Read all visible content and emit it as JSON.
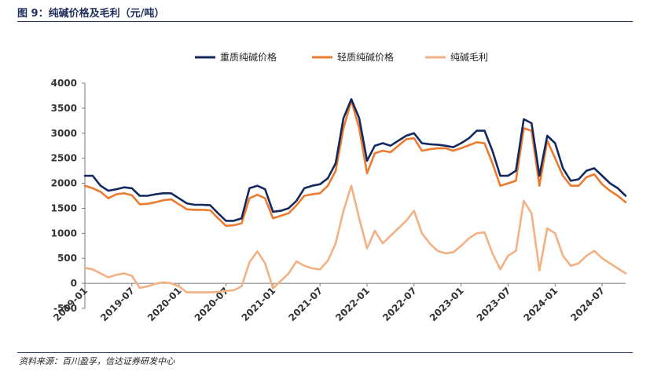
{
  "title": "图 9：纯碱价格及毛利（元/吨）",
  "source": "资料来源：百川盈孚，信达证券研发中心",
  "chart_data": {
    "type": "line",
    "title": "",
    "xlabel": "",
    "ylabel": "",
    "ylim": [
      -500,
      4000
    ],
    "yticks": [
      -500,
      0,
      500,
      1000,
      1500,
      2000,
      2500,
      3000,
      3500,
      4000
    ],
    "x_range": [
      "2019-01",
      "2024-10"
    ],
    "xtick_labels": [
      "2019-01",
      "2019-07",
      "2020-01",
      "2020-07",
      "2021-01",
      "2021-07",
      "2022-01",
      "2022-07",
      "2023-01",
      "2023-07",
      "2024-01",
      "2024-07"
    ],
    "grid": false,
    "legend": "top",
    "series": [
      {
        "name": "重质纯碱价格",
        "color": "#12285f",
        "points": [
          [
            "2019-01",
            2150
          ],
          [
            "2019-02",
            2150
          ],
          [
            "2019-03",
            1950
          ],
          [
            "2019-04",
            1850
          ],
          [
            "2019-05",
            1880
          ],
          [
            "2019-06",
            1920
          ],
          [
            "2019-07",
            1900
          ],
          [
            "2019-08",
            1750
          ],
          [
            "2019-09",
            1750
          ],
          [
            "2019-10",
            1780
          ],
          [
            "2019-11",
            1800
          ],
          [
            "2019-12",
            1800
          ],
          [
            "2020-01",
            1700
          ],
          [
            "2020-02",
            1600
          ],
          [
            "2020-03",
            1570
          ],
          [
            "2020-04",
            1570
          ],
          [
            "2020-05",
            1560
          ],
          [
            "2020-06",
            1400
          ],
          [
            "2020-07",
            1250
          ],
          [
            "2020-08",
            1250
          ],
          [
            "2020-09",
            1300
          ],
          [
            "2020-10",
            1900
          ],
          [
            "2020-11",
            1950
          ],
          [
            "2020-12",
            1880
          ],
          [
            "2021-01",
            1430
          ],
          [
            "2021-02",
            1450
          ],
          [
            "2021-03",
            1500
          ],
          [
            "2021-04",
            1650
          ],
          [
            "2021-05",
            1900
          ],
          [
            "2021-06",
            1950
          ],
          [
            "2021-07",
            1980
          ],
          [
            "2021-08",
            2100
          ],
          [
            "2021-09",
            2400
          ],
          [
            "2021-10",
            3300
          ],
          [
            "2021-11",
            3680
          ],
          [
            "2021-12",
            3300
          ],
          [
            "2022-01",
            2450
          ],
          [
            "2022-02",
            2750
          ],
          [
            "2022-03",
            2800
          ],
          [
            "2022-04",
            2750
          ],
          [
            "2022-05",
            2850
          ],
          [
            "2022-06",
            2950
          ],
          [
            "2022-07",
            3000
          ],
          [
            "2022-08",
            2800
          ],
          [
            "2022-09",
            2780
          ],
          [
            "2022-10",
            2770
          ],
          [
            "2022-11",
            2750
          ],
          [
            "2022-12",
            2720
          ],
          [
            "2023-01",
            2800
          ],
          [
            "2023-02",
            2900
          ],
          [
            "2023-03",
            3050
          ],
          [
            "2023-04",
            3050
          ],
          [
            "2023-05",
            2650
          ],
          [
            "2023-06",
            2150
          ],
          [
            "2023-07",
            2150
          ],
          [
            "2023-08",
            2250
          ],
          [
            "2023-09",
            3280
          ],
          [
            "2023-10",
            3200
          ],
          [
            "2023-11",
            2150
          ],
          [
            "2023-12",
            2950
          ],
          [
            "2024-01",
            2800
          ],
          [
            "2024-02",
            2300
          ],
          [
            "2024-03",
            2050
          ],
          [
            "2024-04",
            2080
          ],
          [
            "2024-05",
            2250
          ],
          [
            "2024-06",
            2300
          ],
          [
            "2024-07",
            2150
          ],
          [
            "2024-08",
            2000
          ],
          [
            "2024-09",
            1900
          ],
          [
            "2024-10",
            1750
          ]
        ]
      },
      {
        "name": "轻质纯碱价格",
        "color": "#ec7b2f",
        "points": [
          [
            "2019-01",
            1950
          ],
          [
            "2019-02",
            1900
          ],
          [
            "2019-03",
            1830
          ],
          [
            "2019-04",
            1700
          ],
          [
            "2019-05",
            1780
          ],
          [
            "2019-06",
            1800
          ],
          [
            "2019-07",
            1760
          ],
          [
            "2019-08",
            1580
          ],
          [
            "2019-09",
            1590
          ],
          [
            "2019-10",
            1620
          ],
          [
            "2019-11",
            1660
          ],
          [
            "2019-12",
            1680
          ],
          [
            "2020-01",
            1580
          ],
          [
            "2020-02",
            1480
          ],
          [
            "2020-03",
            1470
          ],
          [
            "2020-04",
            1470
          ],
          [
            "2020-05",
            1460
          ],
          [
            "2020-06",
            1300
          ],
          [
            "2020-07",
            1150
          ],
          [
            "2020-08",
            1160
          ],
          [
            "2020-09",
            1200
          ],
          [
            "2020-10",
            1700
          ],
          [
            "2020-11",
            1770
          ],
          [
            "2020-12",
            1700
          ],
          [
            "2021-01",
            1300
          ],
          [
            "2021-02",
            1350
          ],
          [
            "2021-03",
            1400
          ],
          [
            "2021-04",
            1560
          ],
          [
            "2021-05",
            1750
          ],
          [
            "2021-06",
            1780
          ],
          [
            "2021-07",
            1800
          ],
          [
            "2021-08",
            1950
          ],
          [
            "2021-09",
            2250
          ],
          [
            "2021-10",
            3100
          ],
          [
            "2021-11",
            3650
          ],
          [
            "2021-12",
            3100
          ],
          [
            "2022-01",
            2200
          ],
          [
            "2022-02",
            2600
          ],
          [
            "2022-03",
            2650
          ],
          [
            "2022-04",
            2620
          ],
          [
            "2022-05",
            2750
          ],
          [
            "2022-06",
            2880
          ],
          [
            "2022-07",
            2900
          ],
          [
            "2022-08",
            2650
          ],
          [
            "2022-09",
            2680
          ],
          [
            "2022-10",
            2700
          ],
          [
            "2022-11",
            2700
          ],
          [
            "2022-12",
            2650
          ],
          [
            "2023-01",
            2700
          ],
          [
            "2023-02",
            2760
          ],
          [
            "2023-03",
            2820
          ],
          [
            "2023-04",
            2800
          ],
          [
            "2023-05",
            2400
          ],
          [
            "2023-06",
            1950
          ],
          [
            "2023-07",
            2000
          ],
          [
            "2023-08",
            2050
          ],
          [
            "2023-09",
            3100
          ],
          [
            "2023-10",
            3050
          ],
          [
            "2023-11",
            1950
          ],
          [
            "2023-12",
            2850
          ],
          [
            "2024-01",
            2500
          ],
          [
            "2024-02",
            2150
          ],
          [
            "2024-03",
            1950
          ],
          [
            "2024-04",
            1950
          ],
          [
            "2024-05",
            2120
          ],
          [
            "2024-06",
            2180
          ],
          [
            "2024-07",
            1980
          ],
          [
            "2024-08",
            1850
          ],
          [
            "2024-09",
            1750
          ],
          [
            "2024-10",
            1620
          ]
        ]
      },
      {
        "name": "纯碱毛利",
        "color": "#f3b183",
        "points": [
          [
            "2019-01",
            310
          ],
          [
            "2019-02",
            280
          ],
          [
            "2019-03",
            200
          ],
          [
            "2019-04",
            120
          ],
          [
            "2019-05",
            170
          ],
          [
            "2019-06",
            200
          ],
          [
            "2019-07",
            150
          ],
          [
            "2019-08",
            -90
          ],
          [
            "2019-09",
            -60
          ],
          [
            "2019-10",
            -10
          ],
          [
            "2019-11",
            20
          ],
          [
            "2019-12",
            0
          ],
          [
            "2020-01",
            -60
          ],
          [
            "2020-02",
            -180
          ],
          [
            "2020-03",
            -180
          ],
          [
            "2020-04",
            -180
          ],
          [
            "2020-05",
            -180
          ],
          [
            "2020-06",
            -170
          ],
          [
            "2020-07",
            -150
          ],
          [
            "2020-08",
            -140
          ],
          [
            "2020-09",
            -60
          ],
          [
            "2020-10",
            420
          ],
          [
            "2020-11",
            640
          ],
          [
            "2020-12",
            400
          ],
          [
            "2021-01",
            -100
          ],
          [
            "2021-02",
            50
          ],
          [
            "2021-03",
            200
          ],
          [
            "2021-04",
            440
          ],
          [
            "2021-05",
            350
          ],
          [
            "2021-06",
            300
          ],
          [
            "2021-07",
            280
          ],
          [
            "2021-08",
            450
          ],
          [
            "2021-09",
            800
          ],
          [
            "2021-10",
            1450
          ],
          [
            "2021-11",
            1950
          ],
          [
            "2021-12",
            1300
          ],
          [
            "2022-01",
            700
          ],
          [
            "2022-02",
            1050
          ],
          [
            "2022-03",
            800
          ],
          [
            "2022-04",
            950
          ],
          [
            "2022-05",
            1100
          ],
          [
            "2022-06",
            1250
          ],
          [
            "2022-07",
            1450
          ],
          [
            "2022-08",
            1000
          ],
          [
            "2022-09",
            800
          ],
          [
            "2022-10",
            650
          ],
          [
            "2022-11",
            600
          ],
          [
            "2022-12",
            620
          ],
          [
            "2023-01",
            750
          ],
          [
            "2023-02",
            900
          ],
          [
            "2023-03",
            1000
          ],
          [
            "2023-04",
            1020
          ],
          [
            "2023-05",
            600
          ],
          [
            "2023-06",
            280
          ],
          [
            "2023-07",
            550
          ],
          [
            "2023-08",
            650
          ],
          [
            "2023-09",
            1650
          ],
          [
            "2023-10",
            1400
          ],
          [
            "2023-11",
            260
          ],
          [
            "2023-12",
            1100
          ],
          [
            "2024-01",
            1000
          ],
          [
            "2024-02",
            550
          ],
          [
            "2024-03",
            350
          ],
          [
            "2024-04",
            400
          ],
          [
            "2024-05",
            550
          ],
          [
            "2024-06",
            650
          ],
          [
            "2024-07",
            500
          ],
          [
            "2024-08",
            400
          ],
          [
            "2024-09",
            300
          ],
          [
            "2024-10",
            200
          ]
        ]
      }
    ]
  }
}
